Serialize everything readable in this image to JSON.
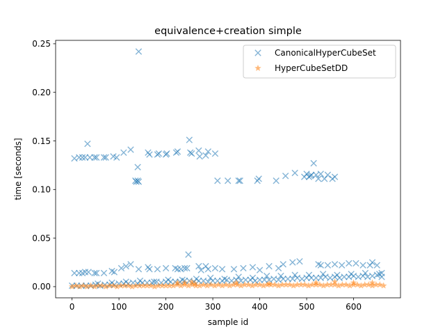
{
  "chart_data": {
    "type": "scatter",
    "title": "equivalence+creation simple",
    "xlabel": "sample id",
    "ylabel": "time [seconds]",
    "xlim": [
      -35,
      700
    ],
    "ylim": [
      -0.0115,
      0.2535
    ],
    "x_ticks": [
      0,
      100,
      200,
      300,
      400,
      500,
      600
    ],
    "y_ticks": [
      0.0,
      0.05,
      0.1,
      0.15,
      0.2,
      0.25
    ],
    "x_tick_labels": [
      "0",
      "100",
      "200",
      "300",
      "400",
      "500",
      "600"
    ],
    "y_tick_labels": [
      "0.00",
      "0.05",
      "0.10",
      "0.15",
      "0.20",
      "0.25"
    ],
    "grid": false,
    "legend_position": "top-right",
    "series": [
      {
        "name": "CanonicalHyperCubeSet",
        "marker": "x",
        "color": "#1f77b4",
        "points": [
          [
            5,
            0.132
          ],
          [
            15,
            0.133
          ],
          [
            22,
            0.133
          ],
          [
            28,
            0.133
          ],
          [
            33,
            0.147
          ],
          [
            38,
            0.133
          ],
          [
            48,
            0.133
          ],
          [
            52,
            0.133
          ],
          [
            68,
            0.133
          ],
          [
            72,
            0.133
          ],
          [
            88,
            0.134
          ],
          [
            95,
            0.133
          ],
          [
            110,
            0.138
          ],
          [
            125,
            0.141
          ],
          [
            135,
            0.109
          ],
          [
            137,
            0.108
          ],
          [
            140,
            0.109
          ],
          [
            142,
            0.108
          ],
          [
            140,
            0.123
          ],
          [
            142,
            0.242
          ],
          [
            162,
            0.138
          ],
          [
            165,
            0.136
          ],
          [
            182,
            0.136
          ],
          [
            185,
            0.137
          ],
          [
            200,
            0.136
          ],
          [
            202,
            0.137
          ],
          [
            222,
            0.138
          ],
          [
            225,
            0.139
          ],
          [
            250,
            0.151
          ],
          [
            252,
            0.138
          ],
          [
            255,
            0.137
          ],
          [
            270,
            0.14
          ],
          [
            272,
            0.134
          ],
          [
            285,
            0.135
          ],
          [
            290,
            0.139
          ],
          [
            305,
            0.137
          ],
          [
            310,
            0.109
          ],
          [
            332,
            0.109
          ],
          [
            355,
            0.109
          ],
          [
            358,
            0.109
          ],
          [
            395,
            0.109
          ],
          [
            398,
            0.111
          ],
          [
            435,
            0.109
          ],
          [
            455,
            0.114
          ],
          [
            475,
            0.117
          ],
          [
            495,
            0.113
          ],
          [
            500,
            0.116
          ],
          [
            505,
            0.113
          ],
          [
            508,
            0.114
          ],
          [
            510,
            0.115
          ],
          [
            515,
            0.127
          ],
          [
            520,
            0.115
          ],
          [
            525,
            0.111
          ],
          [
            530,
            0.116
          ],
          [
            538,
            0.111
          ],
          [
            545,
            0.115
          ],
          [
            555,
            0.111
          ],
          [
            560,
            0.113
          ],
          [
            5,
            0.014
          ],
          [
            15,
            0.014
          ],
          [
            22,
            0.014
          ],
          [
            28,
            0.015
          ],
          [
            35,
            0.015
          ],
          [
            48,
            0.014
          ],
          [
            52,
            0.014
          ],
          [
            68,
            0.014
          ],
          [
            85,
            0.016
          ],
          [
            90,
            0.015
          ],
          [
            105,
            0.019
          ],
          [
            115,
            0.021
          ],
          [
            125,
            0.023
          ],
          [
            142,
            0.018
          ],
          [
            162,
            0.02
          ],
          [
            165,
            0.018
          ],
          [
            182,
            0.018
          ],
          [
            200,
            0.019
          ],
          [
            220,
            0.019
          ],
          [
            225,
            0.018
          ],
          [
            232,
            0.018
          ],
          [
            240,
            0.019
          ],
          [
            245,
            0.019
          ],
          [
            248,
            0.033
          ],
          [
            270,
            0.021
          ],
          [
            275,
            0.017
          ],
          [
            285,
            0.021
          ],
          [
            290,
            0.018
          ],
          [
            305,
            0.019
          ],
          [
            320,
            0.018
          ],
          [
            345,
            0.018
          ],
          [
            365,
            0.019
          ],
          [
            385,
            0.02
          ],
          [
            400,
            0.017
          ],
          [
            420,
            0.021
          ],
          [
            440,
            0.019
          ],
          [
            450,
            0.023
          ],
          [
            470,
            0.025
          ],
          [
            485,
            0.026
          ],
          [
            525,
            0.023
          ],
          [
            530,
            0.022
          ],
          [
            545,
            0.022
          ],
          [
            560,
            0.023
          ],
          [
            575,
            0.022
          ],
          [
            590,
            0.024
          ],
          [
            605,
            0.024
          ],
          [
            620,
            0.022
          ],
          [
            635,
            0.022
          ],
          [
            640,
            0.025
          ],
          [
            650,
            0.022
          ],
          [
            660,
            0.014
          ],
          [
            0,
            0.001
          ],
          [
            10,
            0.001
          ],
          [
            20,
            0.001
          ],
          [
            30,
            0.001
          ],
          [
            40,
            0.001
          ],
          [
            50,
            0.002
          ],
          [
            60,
            0.001
          ],
          [
            70,
            0.002
          ],
          [
            80,
            0.002
          ],
          [
            90,
            0.002
          ],
          [
            100,
            0.003
          ],
          [
            110,
            0.003
          ],
          [
            120,
            0.003
          ],
          [
            130,
            0.004
          ],
          [
            140,
            0.003
          ],
          [
            150,
            0.004
          ],
          [
            160,
            0.004
          ],
          [
            170,
            0.004
          ],
          [
            180,
            0.005
          ],
          [
            190,
            0.004
          ],
          [
            200,
            0.005
          ],
          [
            210,
            0.005
          ],
          [
            220,
            0.005
          ],
          [
            230,
            0.005
          ],
          [
            240,
            0.006
          ],
          [
            250,
            0.006
          ],
          [
            260,
            0.005
          ],
          [
            270,
            0.006
          ],
          [
            280,
            0.006
          ],
          [
            290,
            0.005
          ],
          [
            300,
            0.006
          ],
          [
            310,
            0.006
          ],
          [
            320,
            0.006
          ],
          [
            330,
            0.007
          ],
          [
            340,
            0.006
          ],
          [
            350,
            0.007
          ],
          [
            360,
            0.006
          ],
          [
            370,
            0.007
          ],
          [
            380,
            0.007
          ],
          [
            390,
            0.006
          ],
          [
            400,
            0.007
          ],
          [
            410,
            0.007
          ],
          [
            420,
            0.007
          ],
          [
            430,
            0.008
          ],
          [
            440,
            0.007
          ],
          [
            450,
            0.008
          ],
          [
            460,
            0.008
          ],
          [
            470,
            0.008
          ],
          [
            480,
            0.009
          ],
          [
            490,
            0.008
          ],
          [
            500,
            0.009
          ],
          [
            510,
            0.009
          ],
          [
            520,
            0.009
          ],
          [
            530,
            0.009
          ],
          [
            540,
            0.01
          ],
          [
            550,
            0.009
          ],
          [
            560,
            0.01
          ],
          [
            570,
            0.009
          ],
          [
            580,
            0.01
          ],
          [
            590,
            0.01
          ],
          [
            600,
            0.011
          ],
          [
            610,
            0.01
          ],
          [
            620,
            0.011
          ],
          [
            630,
            0.01
          ],
          [
            640,
            0.011
          ],
          [
            650,
            0.012
          ],
          [
            660,
            0.01
          ],
          [
            55,
            0.003
          ],
          [
            85,
            0.004
          ],
          [
            115,
            0.005
          ],
          [
            145,
            0.006
          ],
          [
            175,
            0.005
          ],
          [
            205,
            0.007
          ],
          [
            235,
            0.007
          ],
          [
            265,
            0.008
          ],
          [
            295,
            0.009
          ],
          [
            325,
            0.008
          ],
          [
            355,
            0.01
          ],
          [
            385,
            0.009
          ],
          [
            415,
            0.011
          ],
          [
            445,
            0.011
          ],
          [
            475,
            0.012
          ],
          [
            505,
            0.012
          ],
          [
            535,
            0.013
          ],
          [
            565,
            0.012
          ],
          [
            595,
            0.013
          ],
          [
            625,
            0.014
          ],
          [
            655,
            0.013
          ]
        ]
      },
      {
        "name": "HyperCubeSetDD",
        "marker": "star",
        "color": "#ff7f0e",
        "points": [
          [
            0,
            0.0
          ],
          [
            8,
            0.001
          ],
          [
            16,
            0.0
          ],
          [
            24,
            0.001
          ],
          [
            32,
            0.0
          ],
          [
            40,
            0.001
          ],
          [
            48,
            0.0
          ],
          [
            56,
            0.001
          ],
          [
            64,
            0.001
          ],
          [
            72,
            0.0
          ],
          [
            80,
            0.001
          ],
          [
            88,
            0.001
          ],
          [
            96,
            0.0
          ],
          [
            104,
            0.001
          ],
          [
            112,
            0.001
          ],
          [
            120,
            0.001
          ],
          [
            128,
            0.0
          ],
          [
            136,
            0.001
          ],
          [
            144,
            0.001
          ],
          [
            152,
            0.001
          ],
          [
            160,
            0.001
          ],
          [
            168,
            0.001
          ],
          [
            176,
            0.0
          ],
          [
            184,
            0.001
          ],
          [
            192,
            0.001
          ],
          [
            200,
            0.001
          ],
          [
            208,
            0.001
          ],
          [
            216,
            0.001
          ],
          [
            224,
            0.002
          ],
          [
            232,
            0.001
          ],
          [
            240,
            0.002
          ],
          [
            248,
            0.001
          ],
          [
            256,
            0.002
          ],
          [
            264,
            0.001
          ],
          [
            272,
            0.001
          ],
          [
            280,
            0.002
          ],
          [
            288,
            0.001
          ],
          [
            296,
            0.002
          ],
          [
            304,
            0.001
          ],
          [
            312,
            0.002
          ],
          [
            320,
            0.001
          ],
          [
            328,
            0.002
          ],
          [
            336,
            0.001
          ],
          [
            344,
            0.002
          ],
          [
            352,
            0.002
          ],
          [
            360,
            0.001
          ],
          [
            368,
            0.002
          ],
          [
            376,
            0.002
          ],
          [
            384,
            0.001
          ],
          [
            392,
            0.002
          ],
          [
            400,
            0.002
          ],
          [
            408,
            0.001
          ],
          [
            416,
            0.002
          ],
          [
            424,
            0.002
          ],
          [
            432,
            0.002
          ],
          [
            440,
            0.001
          ],
          [
            448,
            0.002
          ],
          [
            456,
            0.002
          ],
          [
            464,
            0.002
          ],
          [
            472,
            0.001
          ],
          [
            480,
            0.002
          ],
          [
            488,
            0.002
          ],
          [
            496,
            0.002
          ],
          [
            504,
            0.001
          ],
          [
            512,
            0.002
          ],
          [
            520,
            0.002
          ],
          [
            528,
            0.002
          ],
          [
            536,
            0.001
          ],
          [
            544,
            0.002
          ],
          [
            552,
            0.002
          ],
          [
            560,
            0.002
          ],
          [
            568,
            0.001
          ],
          [
            576,
            0.002
          ],
          [
            584,
            0.002
          ],
          [
            592,
            0.001
          ],
          [
            600,
            0.002
          ],
          [
            608,
            0.002
          ],
          [
            616,
            0.001
          ],
          [
            624,
            0.002
          ],
          [
            632,
            0.002
          ],
          [
            640,
            0.001
          ],
          [
            648,
            0.002
          ],
          [
            656,
            0.002
          ],
          [
            664,
            0.001
          ],
          [
            225,
            0.004
          ],
          [
            240,
            0.004
          ],
          [
            255,
            0.005
          ],
          [
            262,
            0.003
          ],
          [
            350,
            0.004
          ],
          [
            420,
            0.003
          ],
          [
            520,
            0.004
          ],
          [
            560,
            0.005
          ],
          [
            600,
            0.004
          ],
          [
            640,
            0.004
          ]
        ]
      }
    ]
  }
}
